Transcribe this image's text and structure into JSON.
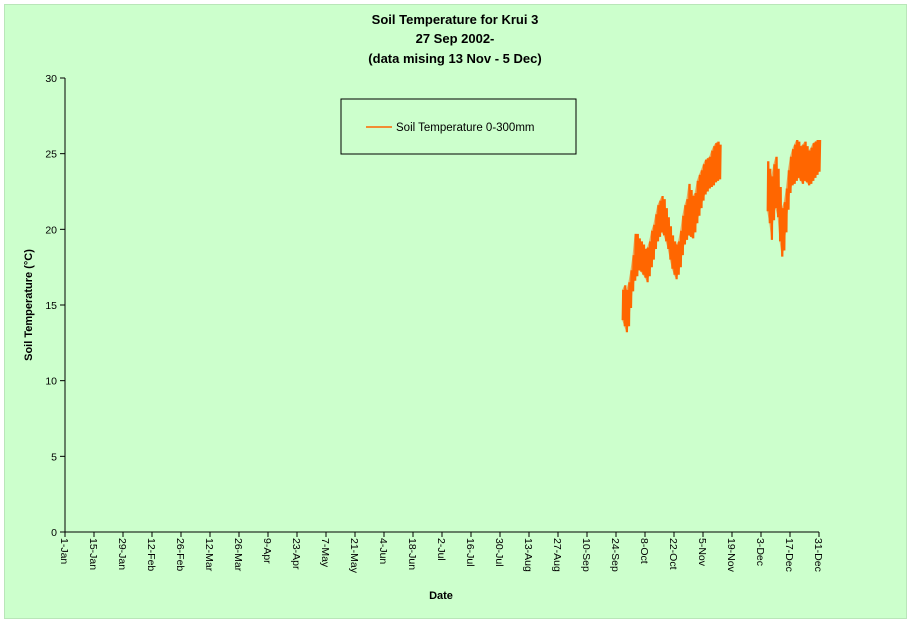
{
  "chart_data": {
    "type": "line",
    "title_lines": [
      "Soil Temperature for Krui 3",
      "27 Sep 2002-",
      "(data mising 13 Nov - 5 Dec)"
    ],
    "xlabel": "Date",
    "ylabel": "Soil Temperature (°C)",
    "xlim": [
      0,
      364
    ],
    "ylim": [
      0,
      30
    ],
    "yticks": [
      0,
      5,
      10,
      15,
      20,
      25,
      30
    ],
    "xtick_labels": [
      "1-Jan",
      "15-Jan",
      "29-Jan",
      "12-Feb",
      "26-Feb",
      "12-Mar",
      "26-Mar",
      "9-Apr",
      "23-Apr",
      "7-May",
      "21-May",
      "4-Jun",
      "18-Jun",
      "2-Jul",
      "16-Jul",
      "30-Jul",
      "13-Aug",
      "27-Aug",
      "10-Sep",
      "24-Sep",
      "8-Oct",
      "22-Oct",
      "5-Nov",
      "19-Nov",
      "3-Dec",
      "17-Dec",
      "31-Dec"
    ],
    "xtick_days": [
      0,
      14,
      28,
      42,
      56,
      70,
      84,
      98,
      112,
      126,
      140,
      154,
      168,
      182,
      196,
      210,
      224,
      238,
      252,
      266,
      280,
      294,
      308,
      322,
      336,
      350,
      364
    ],
    "grid": false,
    "legend_position": "top-center",
    "series": [
      {
        "name": "Soil Temperature  0-300mm",
        "color": "#ff6600",
        "segments": [
          {
            "x": [
              269,
              270,
              271,
              272,
              273,
              274,
              275,
              276,
              277,
              278,
              279,
              280,
              281,
              282,
              283,
              284,
              285,
              286,
              287,
              288,
              289,
              290,
              291,
              292,
              293,
              294,
              295,
              296,
              297,
              298,
              299,
              300,
              301,
              302,
              303,
              304,
              305,
              306,
              307,
              308,
              309,
              310,
              311,
              312,
              313,
              314,
              315,
              316
            ],
            "y_min": [
              14.0,
              13.6,
              13.2,
              13.6,
              14.8,
              15.9,
              16.6,
              16.9,
              17.3,
              17.2,
              17.0,
              16.8,
              16.5,
              16.9,
              17.5,
              18.0,
              18.7,
              19.2,
              19.5,
              19.8,
              19.6,
              19.2,
              18.7,
              18.0,
              17.4,
              17.0,
              16.7,
              17.0,
              17.5,
              18.3,
              19.0,
              19.3,
              19.6,
              19.5,
              19.4,
              19.8,
              20.4,
              20.9,
              21.4,
              21.9,
              22.3,
              22.5,
              22.7,
              22.8,
              22.9,
              23.1,
              23.2,
              23.3
            ],
            "y_max": [
              16.0,
              16.3,
              16.0,
              16.5,
              17.3,
              18.3,
              19.7,
              19.7,
              19.4,
              19.2,
              19.0,
              18.7,
              18.8,
              19.2,
              19.9,
              20.3,
              21.0,
              21.6,
              21.9,
              22.2,
              22.0,
              21.4,
              20.8,
              20.2,
              19.6,
              19.2,
              19.0,
              19.2,
              19.9,
              20.9,
              21.6,
              22.0,
              23.0,
              22.6,
              22.2,
              22.4,
              23.2,
              23.6,
              23.9,
              24.3,
              24.6,
              24.7,
              24.8,
              25.2,
              25.5,
              25.7,
              25.8,
              25.6
            ]
          },
          {
            "x": [
              339,
              340,
              341,
              342,
              343,
              344,
              345,
              346,
              347,
              348,
              349,
              350,
              351,
              352,
              353,
              354,
              355,
              356,
              357,
              358,
              359,
              360,
              361,
              362,
              363,
              364
            ],
            "y_min": [
              21.2,
              20.4,
              19.3,
              20.6,
              21.4,
              20.8,
              19.2,
              18.2,
              18.6,
              19.8,
              21.3,
              22.4,
              22.9,
              23.0,
              23.2,
              23.4,
              23.2,
              23.0,
              23.2,
              23.1,
              22.9,
              23.0,
              23.2,
              23.4,
              23.6,
              23.8
            ],
            "y_max": [
              24.5,
              24.0,
              23.5,
              24.3,
              24.8,
              24.0,
              22.8,
              21.4,
              21.8,
              22.7,
              23.9,
              24.8,
              25.3,
              25.6,
              25.9,
              25.8,
              25.5,
              25.6,
              25.8,
              25.5,
              25.2,
              25.4,
              25.7,
              25.8,
              25.9,
              25.9
            ]
          }
        ]
      }
    ]
  }
}
